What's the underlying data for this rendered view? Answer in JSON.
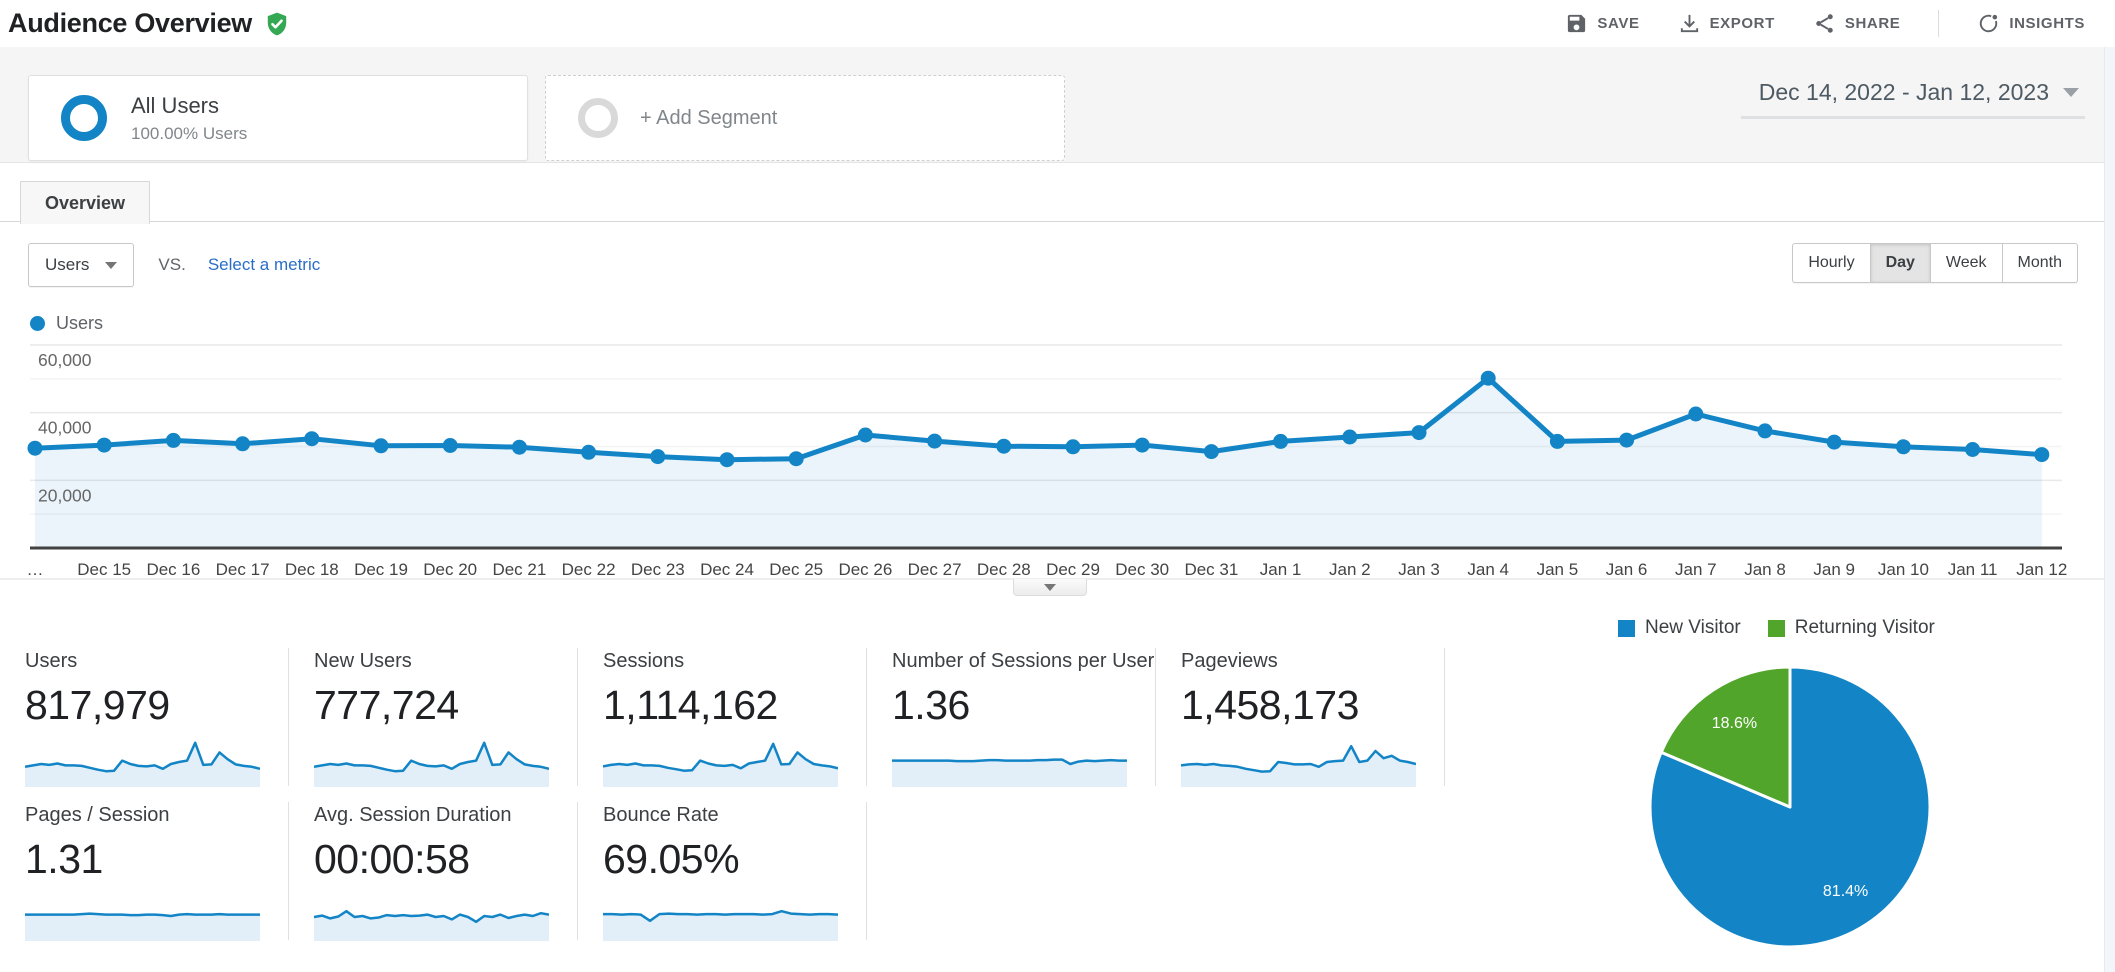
{
  "colors": {
    "accent_blue": "#1385c6",
    "pie_green": "#52a52b",
    "badge_green": "#34a853",
    "link_blue": "#2b6dc6",
    "area_fill": "rgba(19,133,198,0.09)",
    "spark_fill": "#e2eef8",
    "icon_gray": "#5f6368"
  },
  "header": {
    "title": "Audience Overview",
    "badge_icon": "shield-check-icon",
    "actions": [
      {
        "id": "save",
        "label": "SAVE",
        "icon": "save-icon"
      },
      {
        "id": "export",
        "label": "EXPORT",
        "icon": "export-icon"
      },
      {
        "id": "share",
        "label": "SHARE",
        "icon": "share-icon"
      },
      {
        "id": "insights",
        "label": "INSIGHTS",
        "icon": "insights-icon",
        "divider_before": true
      }
    ]
  },
  "segments": {
    "all_users": {
      "title": "All Users",
      "subtitle": "100.00% Users"
    },
    "add_segment": {
      "label": "+ Add Segment"
    },
    "date_range": "Dec 14, 2022 - Jan 12, 2023"
  },
  "tab": {
    "label": "Overview"
  },
  "controls": {
    "metric_dropdown": "Users",
    "vs_label": "VS.",
    "select_metric": "Select a metric",
    "granularity": [
      "Hourly",
      "Day",
      "Week",
      "Month"
    ],
    "granularity_active": "Day"
  },
  "chart_legend": {
    "label": "Users"
  },
  "chart_data": [
    {
      "type": "line",
      "title": "Users by day",
      "series": [
        {
          "name": "Users",
          "values": [
            29500,
            30400,
            31800,
            30800,
            32300,
            30200,
            30300,
            29800,
            28300,
            27000,
            26100,
            26400,
            33400,
            31600,
            30100,
            29900,
            30400,
            28500,
            31500,
            32800,
            34100,
            50200,
            31500,
            31900,
            39600,
            34600,
            31300,
            29900,
            29100,
            27600
          ]
        }
      ],
      "x_labels": [
        "…",
        "Dec 15",
        "Dec 16",
        "Dec 17",
        "Dec 18",
        "Dec 19",
        "Dec 20",
        "Dec 21",
        "Dec 22",
        "Dec 23",
        "Dec 24",
        "Dec 25",
        "Dec 26",
        "Dec 27",
        "Dec 28",
        "Dec 29",
        "Dec 30",
        "Dec 31",
        "Jan 1",
        "Jan 2",
        "Jan 3",
        "Jan 4",
        "Jan 5",
        "Jan 6",
        "Jan 7",
        "Jan 8",
        "Jan 9",
        "Jan 10",
        "Jan 11",
        "Jan 12"
      ],
      "ylim": [
        0,
        60000
      ],
      "y_ticks": [
        {
          "v": 20000,
          "label": "20,000"
        },
        {
          "v": 40000,
          "label": "40,000"
        },
        {
          "v": 60000,
          "label": "60,000"
        }
      ],
      "grid": "horizontal every 10,000 (labels every 20,000)",
      "legend_position": "top-left",
      "legend_entries": [
        "Users"
      ]
    },
    {
      "type": "pie",
      "title": "New vs Returning Visitors",
      "labels": [
        "New Visitor",
        "Returning Visitor"
      ],
      "values": [
        81.4,
        18.6
      ],
      "value_labels": [
        "81.4%",
        "18.6%"
      ],
      "unit": "%",
      "colors": [
        "#1385c6",
        "#52a52b"
      ],
      "legend_position": "top"
    }
  ],
  "scorecards": {
    "rows": [
      [
        {
          "label": "Users",
          "value": "817,979",
          "spark": [
            0.42,
            0.45,
            0.48,
            0.46,
            0.49,
            0.45,
            0.45,
            0.44,
            0.4,
            0.36,
            0.33,
            0.34,
            0.55,
            0.48,
            0.44,
            0.43,
            0.45,
            0.38,
            0.48,
            0.52,
            0.55,
            0.92,
            0.46,
            0.47,
            0.72,
            0.58,
            0.47,
            0.44,
            0.42,
            0.38
          ]
        },
        {
          "label": "New Users",
          "value": "777,724",
          "spark": [
            0.42,
            0.45,
            0.48,
            0.46,
            0.49,
            0.45,
            0.45,
            0.44,
            0.4,
            0.36,
            0.33,
            0.34,
            0.55,
            0.48,
            0.44,
            0.43,
            0.45,
            0.38,
            0.48,
            0.52,
            0.55,
            0.92,
            0.46,
            0.47,
            0.72,
            0.58,
            0.47,
            0.44,
            0.42,
            0.38
          ]
        },
        {
          "label": "Sessions",
          "value": "1,114,162",
          "spark": [
            0.43,
            0.46,
            0.48,
            0.46,
            0.49,
            0.45,
            0.45,
            0.44,
            0.4,
            0.37,
            0.34,
            0.35,
            0.55,
            0.49,
            0.45,
            0.44,
            0.46,
            0.39,
            0.49,
            0.52,
            0.55,
            0.9,
            0.47,
            0.48,
            0.72,
            0.58,
            0.48,
            0.45,
            0.43,
            0.39
          ]
        },
        {
          "label": "Number of Sessions per User",
          "value": "1.36",
          "spark": [
            0.55,
            0.55,
            0.55,
            0.55,
            0.55,
            0.55,
            0.55,
            0.55,
            0.54,
            0.54,
            0.54,
            0.55,
            0.56,
            0.56,
            0.55,
            0.55,
            0.55,
            0.55,
            0.56,
            0.56,
            0.57,
            0.57,
            0.48,
            0.53,
            0.55,
            0.54,
            0.55,
            0.56,
            0.55,
            0.55
          ]
        },
        {
          "label": "Pageviews",
          "value": "1,458,173",
          "spark": [
            0.45,
            0.47,
            0.48,
            0.46,
            0.48,
            0.45,
            0.44,
            0.42,
            0.38,
            0.35,
            0.32,
            0.33,
            0.52,
            0.5,
            0.47,
            0.47,
            0.48,
            0.42,
            0.52,
            0.54,
            0.55,
            0.85,
            0.52,
            0.55,
            0.75,
            0.6,
            0.65,
            0.55,
            0.52,
            0.48
          ]
        }
      ],
      [
        {
          "label": "Pages / Session",
          "value": "1.31",
          "spark": [
            0.55,
            0.55,
            0.55,
            0.55,
            0.55,
            0.55,
            0.55,
            0.56,
            0.57,
            0.56,
            0.55,
            0.55,
            0.55,
            0.54,
            0.54,
            0.55,
            0.55,
            0.54,
            0.52,
            0.55,
            0.56,
            0.55,
            0.55,
            0.55,
            0.56,
            0.55,
            0.55,
            0.55,
            0.55,
            0.55
          ]
        },
        {
          "label": "Avg. Session Duration",
          "value": "00:00:58",
          "spark": [
            0.5,
            0.53,
            0.47,
            0.51,
            0.62,
            0.5,
            0.52,
            0.47,
            0.49,
            0.54,
            0.52,
            0.54,
            0.52,
            0.53,
            0.55,
            0.5,
            0.52,
            0.45,
            0.55,
            0.5,
            0.4,
            0.52,
            0.5,
            0.55,
            0.48,
            0.52,
            0.55,
            0.52,
            0.58,
            0.55
          ]
        },
        {
          "label": "Bounce Rate",
          "value": "69.05%",
          "spark": [
            0.56,
            0.56,
            0.55,
            0.56,
            0.55,
            0.42,
            0.56,
            0.57,
            0.56,
            0.56,
            0.55,
            0.56,
            0.56,
            0.55,
            0.56,
            0.56,
            0.56,
            0.55,
            0.56,
            0.62,
            0.57,
            0.56,
            0.55,
            0.56,
            0.56,
            0.55
          ]
        }
      ]
    ]
  }
}
